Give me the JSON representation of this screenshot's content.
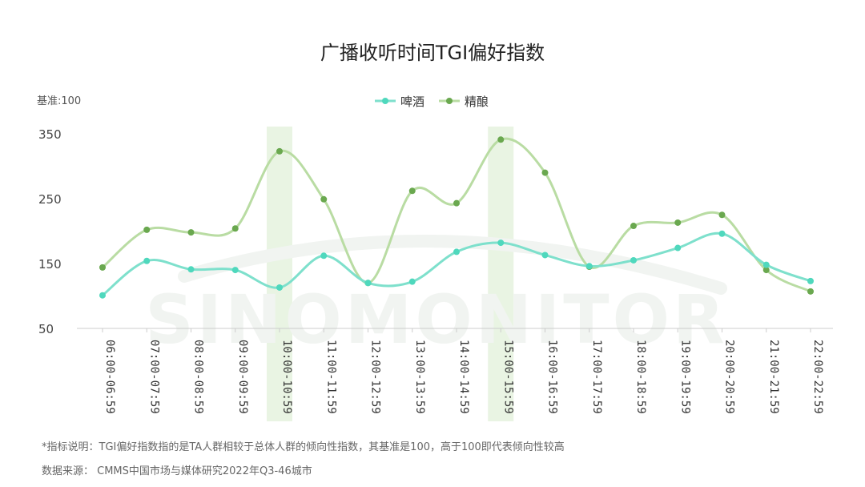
{
  "title": "广播收听时间TGI偏好指数",
  "base_label": "基准:100",
  "watermark": "SINOMONITOR",
  "footnote": "*指标说明：TGI偏好指数指的是TA人群相较于总体人群的倾向性指数，其基准是100，高于100即代表倾向性较高",
  "source": "数据来源： CMMS中国市场与媒体研究2022年Q3-46城市",
  "colors": {
    "beer": "#7ee0cc",
    "beer_marker": "#4fd8bd",
    "craft": "#b9dca3",
    "craft_marker": "#6aa84f",
    "highlight": "#e9f4e3",
    "axis": "#cccccc"
  },
  "chart_data": {
    "type": "line",
    "smooth": true,
    "title": "广播收听时间TGI偏好指数",
    "ylabel": "",
    "xlabel": "",
    "ylim": [
      50,
      350
    ],
    "yticks": [
      50,
      150,
      250,
      350
    ],
    "categories": [
      "06:00-06:59",
      "07:00-07:59",
      "08:00-08:59",
      "09:00-09:59",
      "10:00-10:59",
      "11:00-11:59",
      "12:00-12:59",
      "13:00-13:59",
      "14:00-14:59",
      "15:00-15:59",
      "16:00-16:59",
      "17:00-17:59",
      "18:00-18:59",
      "19:00-19:59",
      "20:00-20:59",
      "21:00-21:59",
      "22:00-22:59"
    ],
    "highlighted_categories": [
      "10:00-10:59",
      "15:00-15:59"
    ],
    "legend_position": "top-center",
    "series": [
      {
        "name": "啤酒",
        "values": [
          101,
          154,
          141,
          140,
          113,
          162,
          120,
          122,
          168,
          182,
          163,
          146,
          155,
          174,
          196,
          148,
          123
        ]
      },
      {
        "name": "精酿",
        "values": [
          144,
          202,
          198,
          204,
          323,
          249,
          120,
          262,
          243,
          341,
          290,
          145,
          208,
          213,
          225,
          140,
          107
        ]
      }
    ]
  }
}
